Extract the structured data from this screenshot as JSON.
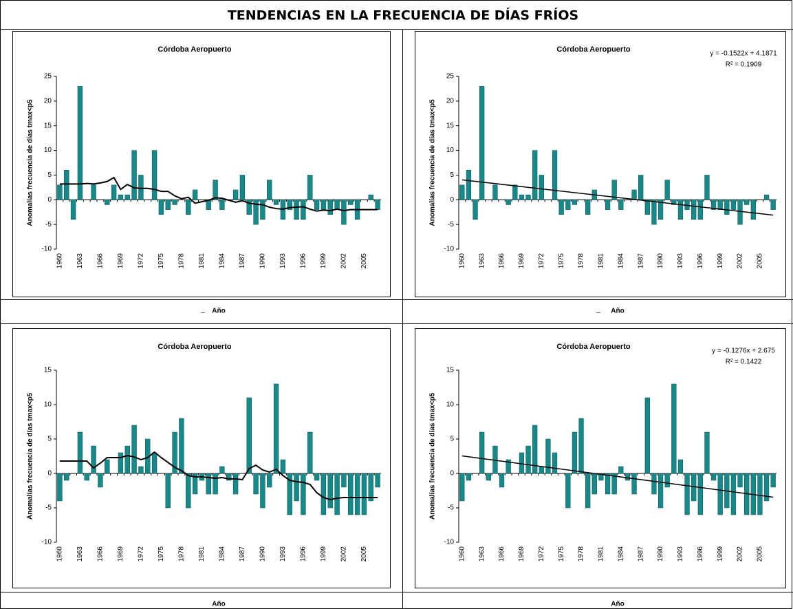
{
  "title": "TENDENCIAS EN LA FRECUENCIA DE DÍAS FRÍOS",
  "separators": [
    "_",
    "_"
  ],
  "chart_data": [
    {
      "type": "bar",
      "title": "Córdoba Aeropuerto",
      "ylabel": "Anomalías frecuencia de días tmax<p5",
      "xlabel": "Año",
      "categories": [
        "1960",
        null,
        null,
        "1963",
        null,
        null,
        "1966",
        null,
        null,
        "1969",
        null,
        null,
        "1972",
        null,
        null,
        "1975",
        null,
        null,
        "1978",
        null,
        null,
        "1981",
        null,
        null,
        "1984",
        null,
        null,
        "1987",
        null,
        null,
        "1990",
        null,
        null,
        "1993",
        null,
        null,
        "1996",
        null,
        null,
        "1999",
        null,
        null,
        "2002",
        null,
        null,
        "2005",
        null,
        null
      ],
      "series": [
        {
          "kind": "bar",
          "color": "#168a8a",
          "values": [
            3,
            6,
            -4,
            23,
            0,
            3,
            0,
            -1,
            3,
            1,
            1,
            10,
            5,
            0,
            10,
            -3,
            -2,
            -1,
            0,
            -3,
            2,
            0,
            -2,
            4,
            -2,
            0,
            2,
            5,
            -3,
            -5,
            -4,
            4,
            -1,
            -4,
            -2,
            -4,
            -4,
            5,
            -2,
            -2,
            -3,
            -2,
            -5,
            -1,
            -4,
            0,
            1,
            -2
          ]
        },
        {
          "kind": "line",
          "color": "#000000",
          "values": [
            3.2,
            3.2,
            3.2,
            3.2,
            3.3,
            3.2,
            3.4,
            3.7,
            4.5,
            2.1,
            3.1,
            2.4,
            2.3,
            2.3,
            2.1,
            1.7,
            1.7,
            0.8,
            0.2,
            0.5,
            -0.7,
            -0.4,
            -0.1,
            0.4,
            0.3,
            -0.1,
            -0.5,
            -0.2,
            -0.7,
            -0.9,
            -1,
            -1.5,
            -1.8,
            -1.9,
            -1.6,
            -1.5,
            -1.4,
            -1.9,
            -2.3,
            -2.1,
            -2.2,
            -1.9,
            -2.2,
            -2,
            -2,
            -2,
            -2,
            -2
          ]
        }
      ],
      "ylim": [
        -10,
        25
      ],
      "yticks": [
        -10,
        -5,
        0,
        5,
        10,
        15,
        20,
        25
      ]
    },
    {
      "type": "bar",
      "title": "Córdoba Aeropuerto",
      "ylabel": "Anomalías frecuencia de días tmax<p5",
      "xlabel": "Año",
      "categories": [
        "1960",
        null,
        null,
        "1963",
        null,
        null,
        "1966",
        null,
        null,
        "1969",
        null,
        null,
        "1972",
        null,
        null,
        "1975",
        null,
        null,
        "1978",
        null,
        null,
        "1981",
        null,
        null,
        "1984",
        null,
        null,
        "1987",
        null,
        null,
        "1990",
        null,
        null,
        "1993",
        null,
        null,
        "1996",
        null,
        null,
        "1999",
        null,
        null,
        "2002",
        null,
        null,
        "2005",
        null,
        null
      ],
      "series": [
        {
          "kind": "bar",
          "color": "#168a8a",
          "values": [
            3,
            6,
            -4,
            23,
            0,
            3,
            0,
            -1,
            3,
            1,
            1,
            10,
            5,
            0,
            10,
            -3,
            -2,
            -1,
            0,
            -3,
            2,
            0,
            -2,
            4,
            -2,
            0,
            2,
            5,
            -3,
            -5,
            -4,
            4,
            -1,
            -4,
            -2,
            -4,
            -4,
            5,
            -2,
            -2,
            -3,
            -2,
            -5,
            -1,
            -4,
            0,
            1,
            -2
          ]
        }
      ],
      "trendline": {
        "slope": -0.1522,
        "intercept": 4.1871,
        "label": "y = -0.1522x + 4.1871",
        "r2_label": "R² = 0.1909"
      },
      "ylim": [
        -10,
        25
      ],
      "yticks": [
        -10,
        -5,
        0,
        5,
        10,
        15,
        20,
        25
      ]
    },
    {
      "type": "bar",
      "title": "Córdoba Aeropuerto",
      "ylabel": "Anomalías frecuencia de días tmax<p5",
      "xlabel": "Año",
      "categories": [
        "1960",
        null,
        null,
        "1963",
        null,
        null,
        "1966",
        null,
        null,
        "1969",
        null,
        null,
        "1972",
        null,
        null,
        "1975",
        null,
        null,
        "1978",
        null,
        null,
        "1981",
        null,
        null,
        "1984",
        null,
        null,
        "1987",
        null,
        null,
        "1990",
        null,
        null,
        "1993",
        null,
        null,
        "1996",
        null,
        null,
        "1999",
        null,
        null,
        "2002",
        null,
        null,
        "2005",
        null,
        null
      ],
      "series": [
        {
          "kind": "bar",
          "color": "#168a8a",
          "values": [
            -4,
            -1,
            0,
            6,
            -1,
            4,
            -2,
            2,
            0,
            3,
            4,
            7,
            1,
            5,
            3,
            0,
            -5,
            6,
            8,
            -5,
            -3,
            -1,
            -3,
            -3,
            1,
            -1,
            -3,
            0,
            11,
            -3,
            -5,
            -2,
            13,
            2,
            -6,
            -4,
            -6,
            6,
            -1,
            -6,
            -5,
            -6,
            -2,
            -6,
            -6,
            -6,
            -4,
            -2
          ]
        },
        {
          "kind": "line",
          "color": "#000000",
          "values": [
            1.8,
            1.8,
            1.8,
            1.8,
            1.8,
            0.8,
            1.5,
            2.3,
            2.3,
            2.3,
            2.6,
            2.4,
            2,
            2.3,
            3.1,
            2.3,
            1.6,
            0.9,
            0.4,
            -0.3,
            -0.5,
            -0.5,
            -0.6,
            -0.7,
            -0.6,
            -0.8,
            -0.8,
            -0.9,
            0.7,
            1.2,
            0.5,
            0.2,
            0.6,
            -0.3,
            -1,
            -1.2,
            -1.3,
            -1.6,
            -2.8,
            -3.5,
            -3.8,
            -3.6,
            -3.5,
            -3.5,
            -3.5,
            -3.5,
            -3.5,
            -3.5
          ]
        }
      ],
      "ylim": [
        -10,
        15
      ],
      "yticks": [
        -10,
        -5,
        0,
        5,
        10,
        15
      ]
    },
    {
      "type": "bar",
      "title": "Córdoba Aeropuerto",
      "ylabel": "Anomalías frecuencia de días tmax<p5",
      "xlabel": "Año",
      "categories": [
        "1960",
        null,
        null,
        "1963",
        null,
        null,
        "1966",
        null,
        null,
        "1969",
        null,
        null,
        "1972",
        null,
        null,
        "1975",
        null,
        null,
        "1978",
        null,
        null,
        "1981",
        null,
        null,
        "1984",
        null,
        null,
        "1987",
        null,
        null,
        "1990",
        null,
        null,
        "1993",
        null,
        null,
        "1996",
        null,
        null,
        "1999",
        null,
        null,
        "2002",
        null,
        null,
        "2005",
        null,
        null
      ],
      "series": [
        {
          "kind": "bar",
          "color": "#168a8a",
          "values": [
            -4,
            -1,
            0,
            6,
            -1,
            4,
            -2,
            2,
            0,
            3,
            4,
            7,
            1,
            5,
            3,
            0,
            -5,
            6,
            8,
            -5,
            -3,
            -1,
            -3,
            -3,
            1,
            -1,
            -3,
            0,
            11,
            -3,
            -5,
            -2,
            13,
            2,
            -6,
            -4,
            -6,
            6,
            -1,
            -6,
            -5,
            -6,
            -2,
            -6,
            -6,
            -6,
            -4,
            -2
          ]
        }
      ],
      "trendline": {
        "slope": -0.1276,
        "intercept": 2.675,
        "label": "y = -0.1276x + 2.675",
        "r2_label": "R² = 0.1422"
      },
      "ylim": [
        -10,
        15
      ],
      "yticks": [
        -10,
        -5,
        0,
        5,
        10,
        15
      ]
    }
  ]
}
